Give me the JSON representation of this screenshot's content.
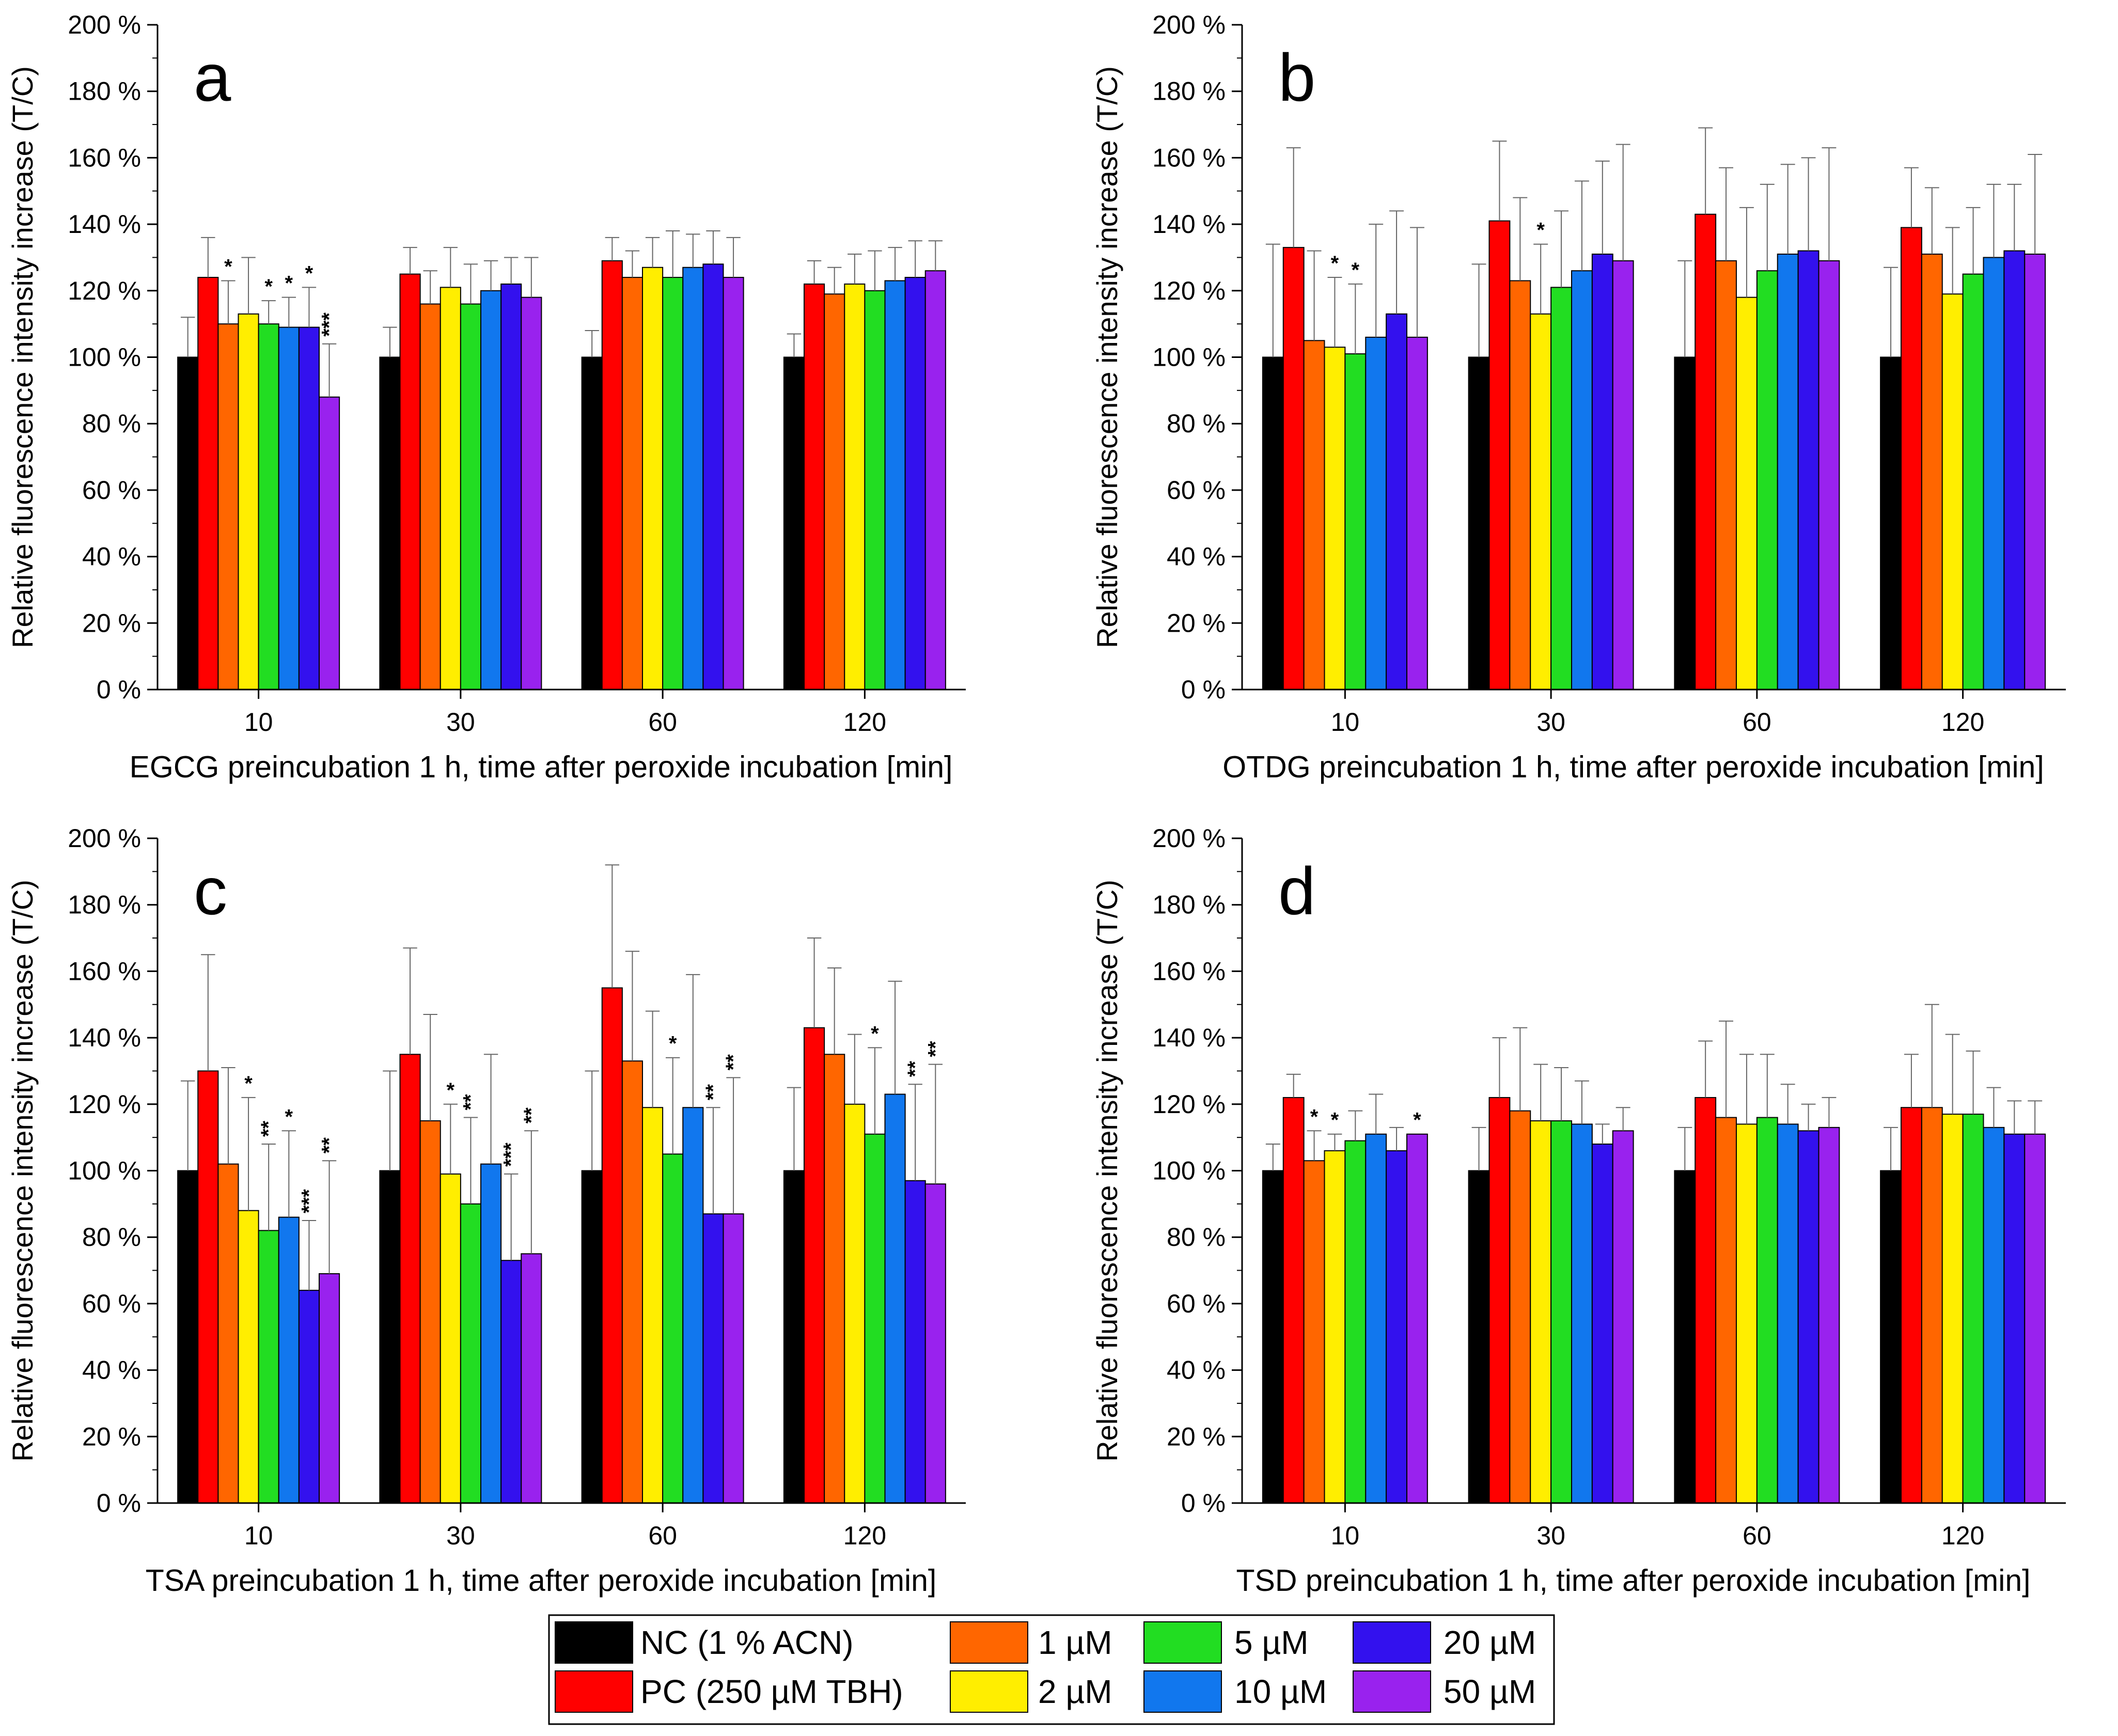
{
  "figure": {
    "y_axis_title": "Relative fluorescence intensity increase (T/C)",
    "y_tick_labels": [
      "0 %",
      "20 %",
      "40 %",
      "60 %",
      "80 %",
      "100 %",
      "120 %",
      "140 %",
      "160 %",
      "180 %",
      "200 %"
    ],
    "legend": [
      {
        "label": "NC (1 % ACN)",
        "color": "#000000"
      },
      {
        "label": "PC (250 µM TBH)",
        "color": "#ff0000"
      },
      {
        "label": "1 µM",
        "color": "#ff6600"
      },
      {
        "label": "2 µM",
        "color": "#ffee00"
      },
      {
        "label": "5 µM",
        "color": "#22dd22"
      },
      {
        "label": "10 µM",
        "color": "#1177ee"
      },
      {
        "label": "20 µM",
        "color": "#3311ee"
      },
      {
        "label": "50 µM",
        "color": "#9922ee"
      }
    ]
  },
  "chart_data": [
    {
      "type": "bar",
      "panel": "a",
      "title": "",
      "xlabel": "EGCG preincubation 1 h, time after peroxide incubation [min]",
      "ylabel": "Relative fluorescence intensity increase (T/C)",
      "ylim": [
        0,
        200
      ],
      "categories": [
        "10",
        "30",
        "60",
        "120"
      ],
      "series": [
        {
          "name": "NC (1 % ACN)",
          "values": [
            100,
            100,
            100,
            100
          ],
          "errors": [
            12,
            9,
            8,
            7
          ],
          "marks": [
            "",
            "",
            "",
            ""
          ]
        },
        {
          "name": "PC (250 µM TBH)",
          "values": [
            124,
            125,
            129,
            122
          ],
          "errors": [
            12,
            8,
            7,
            7
          ],
          "marks": [
            "",
            "",
            "",
            ""
          ]
        },
        {
          "name": "1 µM",
          "values": [
            110,
            116,
            124,
            119
          ],
          "errors": [
            13,
            10,
            8,
            8
          ],
          "marks": [
            "*",
            "",
            "",
            ""
          ]
        },
        {
          "name": "2 µM",
          "values": [
            113,
            121,
            127,
            122
          ],
          "errors": [
            17,
            12,
            9,
            9
          ],
          "marks": [
            "",
            "",
            "",
            ""
          ]
        },
        {
          "name": "5 µM",
          "values": [
            110,
            116,
            124,
            120
          ],
          "errors": [
            7,
            12,
            14,
            12
          ],
          "marks": [
            "*",
            "",
            "",
            ""
          ]
        },
        {
          "name": "10 µM",
          "values": [
            109,
            120,
            127,
            123
          ],
          "errors": [
            9,
            9,
            10,
            10
          ],
          "marks": [
            "*",
            "",
            "",
            ""
          ]
        },
        {
          "name": "20 µM",
          "values": [
            109,
            122,
            128,
            124
          ],
          "errors": [
            12,
            8,
            10,
            11
          ],
          "marks": [
            "*",
            "",
            "",
            ""
          ]
        },
        {
          "name": "50 µM",
          "values": [
            88,
            118,
            124,
            126
          ],
          "errors": [
            16,
            12,
            12,
            9
          ],
          "marks": [
            "***",
            "",
            "",
            ""
          ]
        }
      ]
    },
    {
      "type": "bar",
      "panel": "b",
      "title": "",
      "xlabel": "OTDG preincubation 1 h, time after peroxide incubation [min]",
      "ylabel": "Relative fluorescence intensity increase (T/C)",
      "ylim": [
        0,
        200
      ],
      "categories": [
        "10",
        "30",
        "60",
        "120"
      ],
      "series": [
        {
          "name": "NC (1 % ACN)",
          "values": [
            100,
            100,
            100,
            100
          ],
          "errors": [
            34,
            28,
            29,
            27
          ],
          "marks": [
            "",
            "",
            "",
            ""
          ]
        },
        {
          "name": "PC (250 µM TBH)",
          "values": [
            133,
            141,
            143,
            139
          ],
          "errors": [
            30,
            24,
            26,
            18
          ],
          "marks": [
            "",
            "",
            "",
            ""
          ]
        },
        {
          "name": "1 µM",
          "values": [
            105,
            123,
            129,
            131
          ],
          "errors": [
            27,
            25,
            28,
            20
          ],
          "marks": [
            "",
            "",
            "",
            ""
          ]
        },
        {
          "name": "2 µM",
          "values": [
            103,
            113,
            118,
            119
          ],
          "errors": [
            21,
            21,
            27,
            20
          ],
          "marks": [
            "*",
            "*",
            "",
            ""
          ]
        },
        {
          "name": "5 µM",
          "values": [
            101,
            121,
            126,
            125
          ],
          "errors": [
            21,
            23,
            26,
            20
          ],
          "marks": [
            "*",
            "",
            "",
            ""
          ]
        },
        {
          "name": "10 µM",
          "values": [
            106,
            126,
            131,
            130
          ],
          "errors": [
            34,
            27,
            27,
            22
          ],
          "marks": [
            "",
            "",
            "",
            ""
          ]
        },
        {
          "name": "20 µM",
          "values": [
            113,
            131,
            132,
            132
          ],
          "errors": [
            31,
            28,
            28,
            20
          ],
          "marks": [
            "",
            "",
            "",
            ""
          ]
        },
        {
          "name": "50 µM",
          "values": [
            106,
            129,
            129,
            131
          ],
          "errors": [
            33,
            35,
            34,
            30
          ],
          "marks": [
            "",
            "",
            "",
            ""
          ]
        }
      ]
    },
    {
      "type": "bar",
      "panel": "c",
      "title": "",
      "xlabel": "TSA preincubation 1 h, time after peroxide incubation [min]",
      "ylabel": "Relative fluorescence intensity increase (T/C)",
      "ylim": [
        0,
        200
      ],
      "categories": [
        "10",
        "30",
        "60",
        "120"
      ],
      "series": [
        {
          "name": "NC (1 % ACN)",
          "values": [
            100,
            100,
            100,
            100
          ],
          "errors": [
            27,
            30,
            30,
            25
          ],
          "marks": [
            "",
            "",
            "",
            ""
          ]
        },
        {
          "name": "PC (250 µM TBH)",
          "values": [
            130,
            135,
            155,
            143
          ],
          "errors": [
            35,
            32,
            37,
            27
          ],
          "marks": [
            "",
            "",
            "",
            ""
          ]
        },
        {
          "name": "1 µM",
          "values": [
            102,
            115,
            133,
            135
          ],
          "errors": [
            29,
            32,
            33,
            26
          ],
          "marks": [
            "",
            "",
            "",
            ""
          ]
        },
        {
          "name": "2 µM",
          "values": [
            88,
            99,
            119,
            120
          ],
          "errors": [
            34,
            21,
            29,
            21
          ],
          "marks": [
            "*",
            "*",
            "",
            ""
          ]
        },
        {
          "name": "5 µM",
          "values": [
            82,
            90,
            105,
            111
          ],
          "errors": [
            26,
            26,
            29,
            26
          ],
          "marks": [
            "**",
            "**",
            "*",
            "*"
          ]
        },
        {
          "name": "10 µM",
          "values": [
            86,
            102,
            119,
            123
          ],
          "errors": [
            26,
            33,
            40,
            34
          ],
          "marks": [
            "*",
            "",
            "",
            ""
          ]
        },
        {
          "name": "20 µM",
          "values": [
            64,
            73,
            87,
            97
          ],
          "errors": [
            21,
            26,
            32,
            29
          ],
          "marks": [
            "***",
            "***",
            "**",
            "**"
          ]
        },
        {
          "name": "50 µM",
          "values": [
            69,
            75,
            87,
            96
          ],
          "errors": [
            34,
            37,
            41,
            36
          ],
          "marks": [
            "**",
            "**",
            "**",
            "**"
          ]
        }
      ]
    },
    {
      "type": "bar",
      "panel": "d",
      "title": "",
      "xlabel": "TSD preincubation 1 h, time after peroxide incubation [min]",
      "ylabel": "Relative fluorescence intensity increase (T/C)",
      "ylim": [
        0,
        200
      ],
      "categories": [
        "10",
        "30",
        "60",
        "120"
      ],
      "series": [
        {
          "name": "NC (1 % ACN)",
          "values": [
            100,
            100,
            100,
            100
          ],
          "errors": [
            8,
            13,
            13,
            13
          ],
          "marks": [
            "",
            "",
            "",
            ""
          ]
        },
        {
          "name": "PC (250 µM TBH)",
          "values": [
            122,
            122,
            122,
            119
          ],
          "errors": [
            7,
            18,
            17,
            16
          ],
          "marks": [
            "",
            "",
            "",
            ""
          ]
        },
        {
          "name": "1 µM",
          "values": [
            103,
            118,
            116,
            119
          ],
          "errors": [
            9,
            25,
            29,
            31
          ],
          "marks": [
            "*",
            "",
            "",
            ""
          ]
        },
        {
          "name": "2 µM",
          "values": [
            106,
            115,
            114,
            117
          ],
          "errors": [
            5,
            17,
            21,
            24
          ],
          "marks": [
            "*",
            "",
            "",
            ""
          ]
        },
        {
          "name": "5 µM",
          "values": [
            109,
            115,
            116,
            117
          ],
          "errors": [
            9,
            16,
            19,
            19
          ],
          "marks": [
            "",
            "",
            "",
            ""
          ]
        },
        {
          "name": "10 µM",
          "values": [
            111,
            114,
            114,
            113
          ],
          "errors": [
            12,
            13,
            12,
            12
          ],
          "marks": [
            "",
            "",
            "",
            ""
          ]
        },
        {
          "name": "20 µM",
          "values": [
            106,
            108,
            112,
            111
          ],
          "errors": [
            7,
            6,
            8,
            10
          ],
          "marks": [
            "",
            "",
            "",
            ""
          ]
        },
        {
          "name": "50 µM",
          "values": [
            111,
            112,
            113,
            111
          ],
          "errors": [
            0,
            7,
            9,
            10
          ],
          "marks": [
            "*",
            "",
            "",
            ""
          ]
        }
      ]
    }
  ]
}
